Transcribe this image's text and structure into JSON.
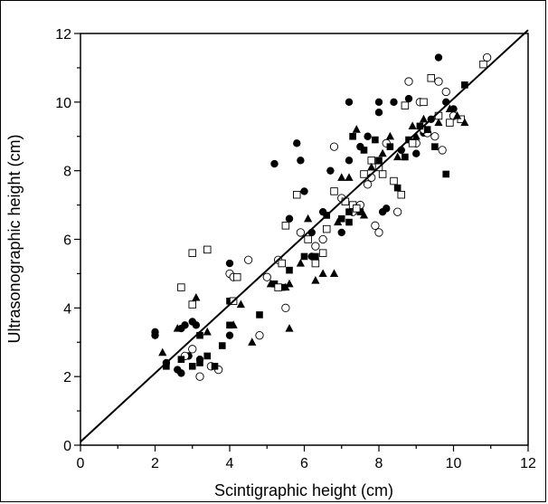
{
  "chart_data": {
    "type": "scatter",
    "title": "",
    "xlabel": "Scintigraphic height (cm)",
    "ylabel": "Ultrasonographic height (cm)",
    "xlim": [
      0,
      12
    ],
    "ylim": [
      0,
      12
    ],
    "x_ticks": [
      "0",
      "2",
      "4",
      "6",
      "8",
      "10",
      "12"
    ],
    "y_ticks": [
      "0",
      "2",
      "4",
      "6",
      "8",
      "10",
      "12"
    ],
    "grid": false,
    "legend": "none",
    "reference_line": {
      "x": [
        0,
        12
      ],
      "y": [
        0.1,
        12.1
      ]
    },
    "series": [
      {
        "marker": "filled-circle",
        "points": [
          [
            2.0,
            3.3
          ],
          [
            2.0,
            3.2
          ],
          [
            2.3,
            2.4
          ],
          [
            2.6,
            2.2
          ],
          [
            2.7,
            2.1
          ],
          [
            2.7,
            3.4
          ],
          [
            2.8,
            3.5
          ],
          [
            3.0,
            3.6
          ],
          [
            3.1,
            3.5
          ],
          [
            3.2,
            2.5
          ],
          [
            2.9,
            2.6
          ],
          [
            4.0,
            5.3
          ],
          [
            4.0,
            3.2
          ],
          [
            5.2,
            8.2
          ],
          [
            5.6,
            6.6
          ],
          [
            5.8,
            8.8
          ],
          [
            5.9,
            8.3
          ],
          [
            6.0,
            7.4
          ],
          [
            6.2,
            5.5
          ],
          [
            6.5,
            6.8
          ],
          [
            6.7,
            8.0
          ],
          [
            7.0,
            6.2
          ],
          [
            7.2,
            10.0
          ],
          [
            7.5,
            8.7
          ],
          [
            7.7,
            9.0
          ],
          [
            8.0,
            10.0
          ],
          [
            8.0,
            9.7
          ],
          [
            8.1,
            6.8
          ],
          [
            8.2,
            6.9
          ],
          [
            8.4,
            10.0
          ],
          [
            8.6,
            8.6
          ],
          [
            8.8,
            10.1
          ],
          [
            9.0,
            8.5
          ],
          [
            9.2,
            9.1
          ],
          [
            9.4,
            9.5
          ],
          [
            9.6,
            11.3
          ],
          [
            9.8,
            10.0
          ],
          [
            10.0,
            9.8
          ],
          [
            6.2,
            6.2
          ],
          [
            7.2,
            8.3
          ]
        ]
      },
      {
        "marker": "open-circle",
        "points": [
          [
            2.8,
            2.6
          ],
          [
            3.0,
            2.8
          ],
          [
            3.2,
            2.0
          ],
          [
            3.5,
            2.3
          ],
          [
            3.7,
            2.2
          ],
          [
            4.0,
            5.0
          ],
          [
            4.1,
            4.9
          ],
          [
            4.5,
            5.4
          ],
          [
            4.8,
            3.2
          ],
          [
            5.0,
            4.9
          ],
          [
            5.3,
            5.4
          ],
          [
            5.5,
            4.0
          ],
          [
            5.9,
            6.2
          ],
          [
            6.3,
            5.8
          ],
          [
            6.5,
            6.0
          ],
          [
            6.8,
            8.7
          ],
          [
            7.0,
            7.2
          ],
          [
            7.3,
            6.8
          ],
          [
            7.5,
            7.0
          ],
          [
            7.7,
            7.6
          ],
          [
            7.8,
            7.8
          ],
          [
            7.9,
            6.4
          ],
          [
            8.0,
            6.2
          ],
          [
            8.2,
            8.8
          ],
          [
            8.5,
            6.8
          ],
          [
            8.8,
            10.6
          ],
          [
            9.0,
            8.8
          ],
          [
            9.1,
            10.0
          ],
          [
            9.3,
            9.1
          ],
          [
            9.5,
            9.0
          ],
          [
            9.6,
            10.6
          ],
          [
            9.8,
            10.3
          ],
          [
            10.0,
            9.6
          ],
          [
            10.9,
            11.3
          ],
          [
            9.7,
            8.6
          ],
          [
            9.2,
            9.2
          ]
        ]
      },
      {
        "marker": "filled-square",
        "points": [
          [
            2.3,
            2.3
          ],
          [
            2.7,
            2.5
          ],
          [
            3.0,
            2.3
          ],
          [
            3.2,
            2.4
          ],
          [
            3.4,
            2.6
          ],
          [
            3.6,
            2.3
          ],
          [
            3.8,
            2.9
          ],
          [
            3.2,
            3.2
          ],
          [
            4.0,
            4.2
          ],
          [
            4.0,
            3.5
          ],
          [
            4.8,
            3.8
          ],
          [
            5.2,
            4.7
          ],
          [
            5.4,
            4.6
          ],
          [
            5.6,
            5.1
          ],
          [
            6.0,
            5.5
          ],
          [
            6.3,
            5.5
          ],
          [
            6.6,
            6.7
          ],
          [
            7.0,
            6.6
          ],
          [
            7.2,
            6.8
          ],
          [
            7.3,
            9.0
          ],
          [
            7.5,
            6.8
          ],
          [
            7.6,
            8.6
          ],
          [
            7.9,
            8.9
          ],
          [
            8.0,
            8.3
          ],
          [
            8.3,
            8.7
          ],
          [
            8.5,
            7.5
          ],
          [
            8.8,
            8.9
          ],
          [
            9.1,
            9.3
          ],
          [
            9.3,
            9.2
          ],
          [
            9.5,
            8.7
          ],
          [
            9.8,
            7.9
          ],
          [
            9.9,
            9.4
          ],
          [
            10.3,
            10.5
          ],
          [
            10.2,
            9.5
          ],
          [
            8.7,
            8.4
          ],
          [
            7.2,
            6.5
          ]
        ]
      },
      {
        "marker": "open-square",
        "points": [
          [
            2.7,
            4.6
          ],
          [
            3.0,
            4.1
          ],
          [
            3.0,
            5.6
          ],
          [
            3.4,
            5.7
          ],
          [
            4.1,
            4.2
          ],
          [
            4.2,
            4.9
          ],
          [
            5.3,
            4.6
          ],
          [
            5.4,
            5.3
          ],
          [
            5.5,
            6.4
          ],
          [
            5.8,
            7.3
          ],
          [
            6.1,
            6.0
          ],
          [
            6.3,
            5.3
          ],
          [
            6.6,
            6.3
          ],
          [
            6.8,
            7.4
          ],
          [
            7.1,
            7.1
          ],
          [
            7.3,
            7.0
          ],
          [
            7.6,
            7.9
          ],
          [
            7.8,
            8.3
          ],
          [
            8.1,
            7.9
          ],
          [
            8.4,
            7.7
          ],
          [
            8.6,
            7.3
          ],
          [
            8.7,
            9.9
          ],
          [
            8.9,
            8.8
          ],
          [
            9.2,
            10.0
          ],
          [
            9.4,
            10.7
          ],
          [
            9.6,
            9.6
          ],
          [
            9.9,
            9.4
          ],
          [
            10.2,
            9.5
          ],
          [
            10.8,
            11.1
          ],
          [
            8.0,
            8.1
          ],
          [
            6.5,
            5.6
          ],
          [
            7.4,
            6.9
          ]
        ]
      },
      {
        "marker": "filled-triangle",
        "points": [
          [
            2.2,
            2.7
          ],
          [
            2.6,
            3.4
          ],
          [
            3.1,
            4.3
          ],
          [
            3.4,
            3.3
          ],
          [
            4.1,
            3.5
          ],
          [
            4.3,
            4.1
          ],
          [
            4.6,
            3.0
          ],
          [
            5.1,
            4.7
          ],
          [
            5.6,
            3.4
          ],
          [
            5.6,
            4.7
          ],
          [
            5.9,
            5.3
          ],
          [
            6.3,
            4.8
          ],
          [
            6.5,
            5.0
          ],
          [
            6.8,
            5.0
          ],
          [
            7.0,
            7.8
          ],
          [
            7.2,
            7.8
          ],
          [
            7.4,
            9.2
          ],
          [
            7.6,
            6.7
          ],
          [
            7.8,
            8.1
          ],
          [
            8.1,
            8.5
          ],
          [
            8.3,
            9.0
          ],
          [
            8.5,
            8.4
          ],
          [
            8.9,
            9.3
          ],
          [
            9.0,
            9.0
          ],
          [
            9.2,
            9.5
          ],
          [
            9.6,
            9.4
          ],
          [
            9.9,
            9.8
          ],
          [
            10.1,
            9.6
          ],
          [
            10.3,
            9.4
          ],
          [
            6.1,
            6.6
          ],
          [
            5.5,
            4.6
          ],
          [
            6.9,
            6.5
          ]
        ]
      }
    ]
  }
}
